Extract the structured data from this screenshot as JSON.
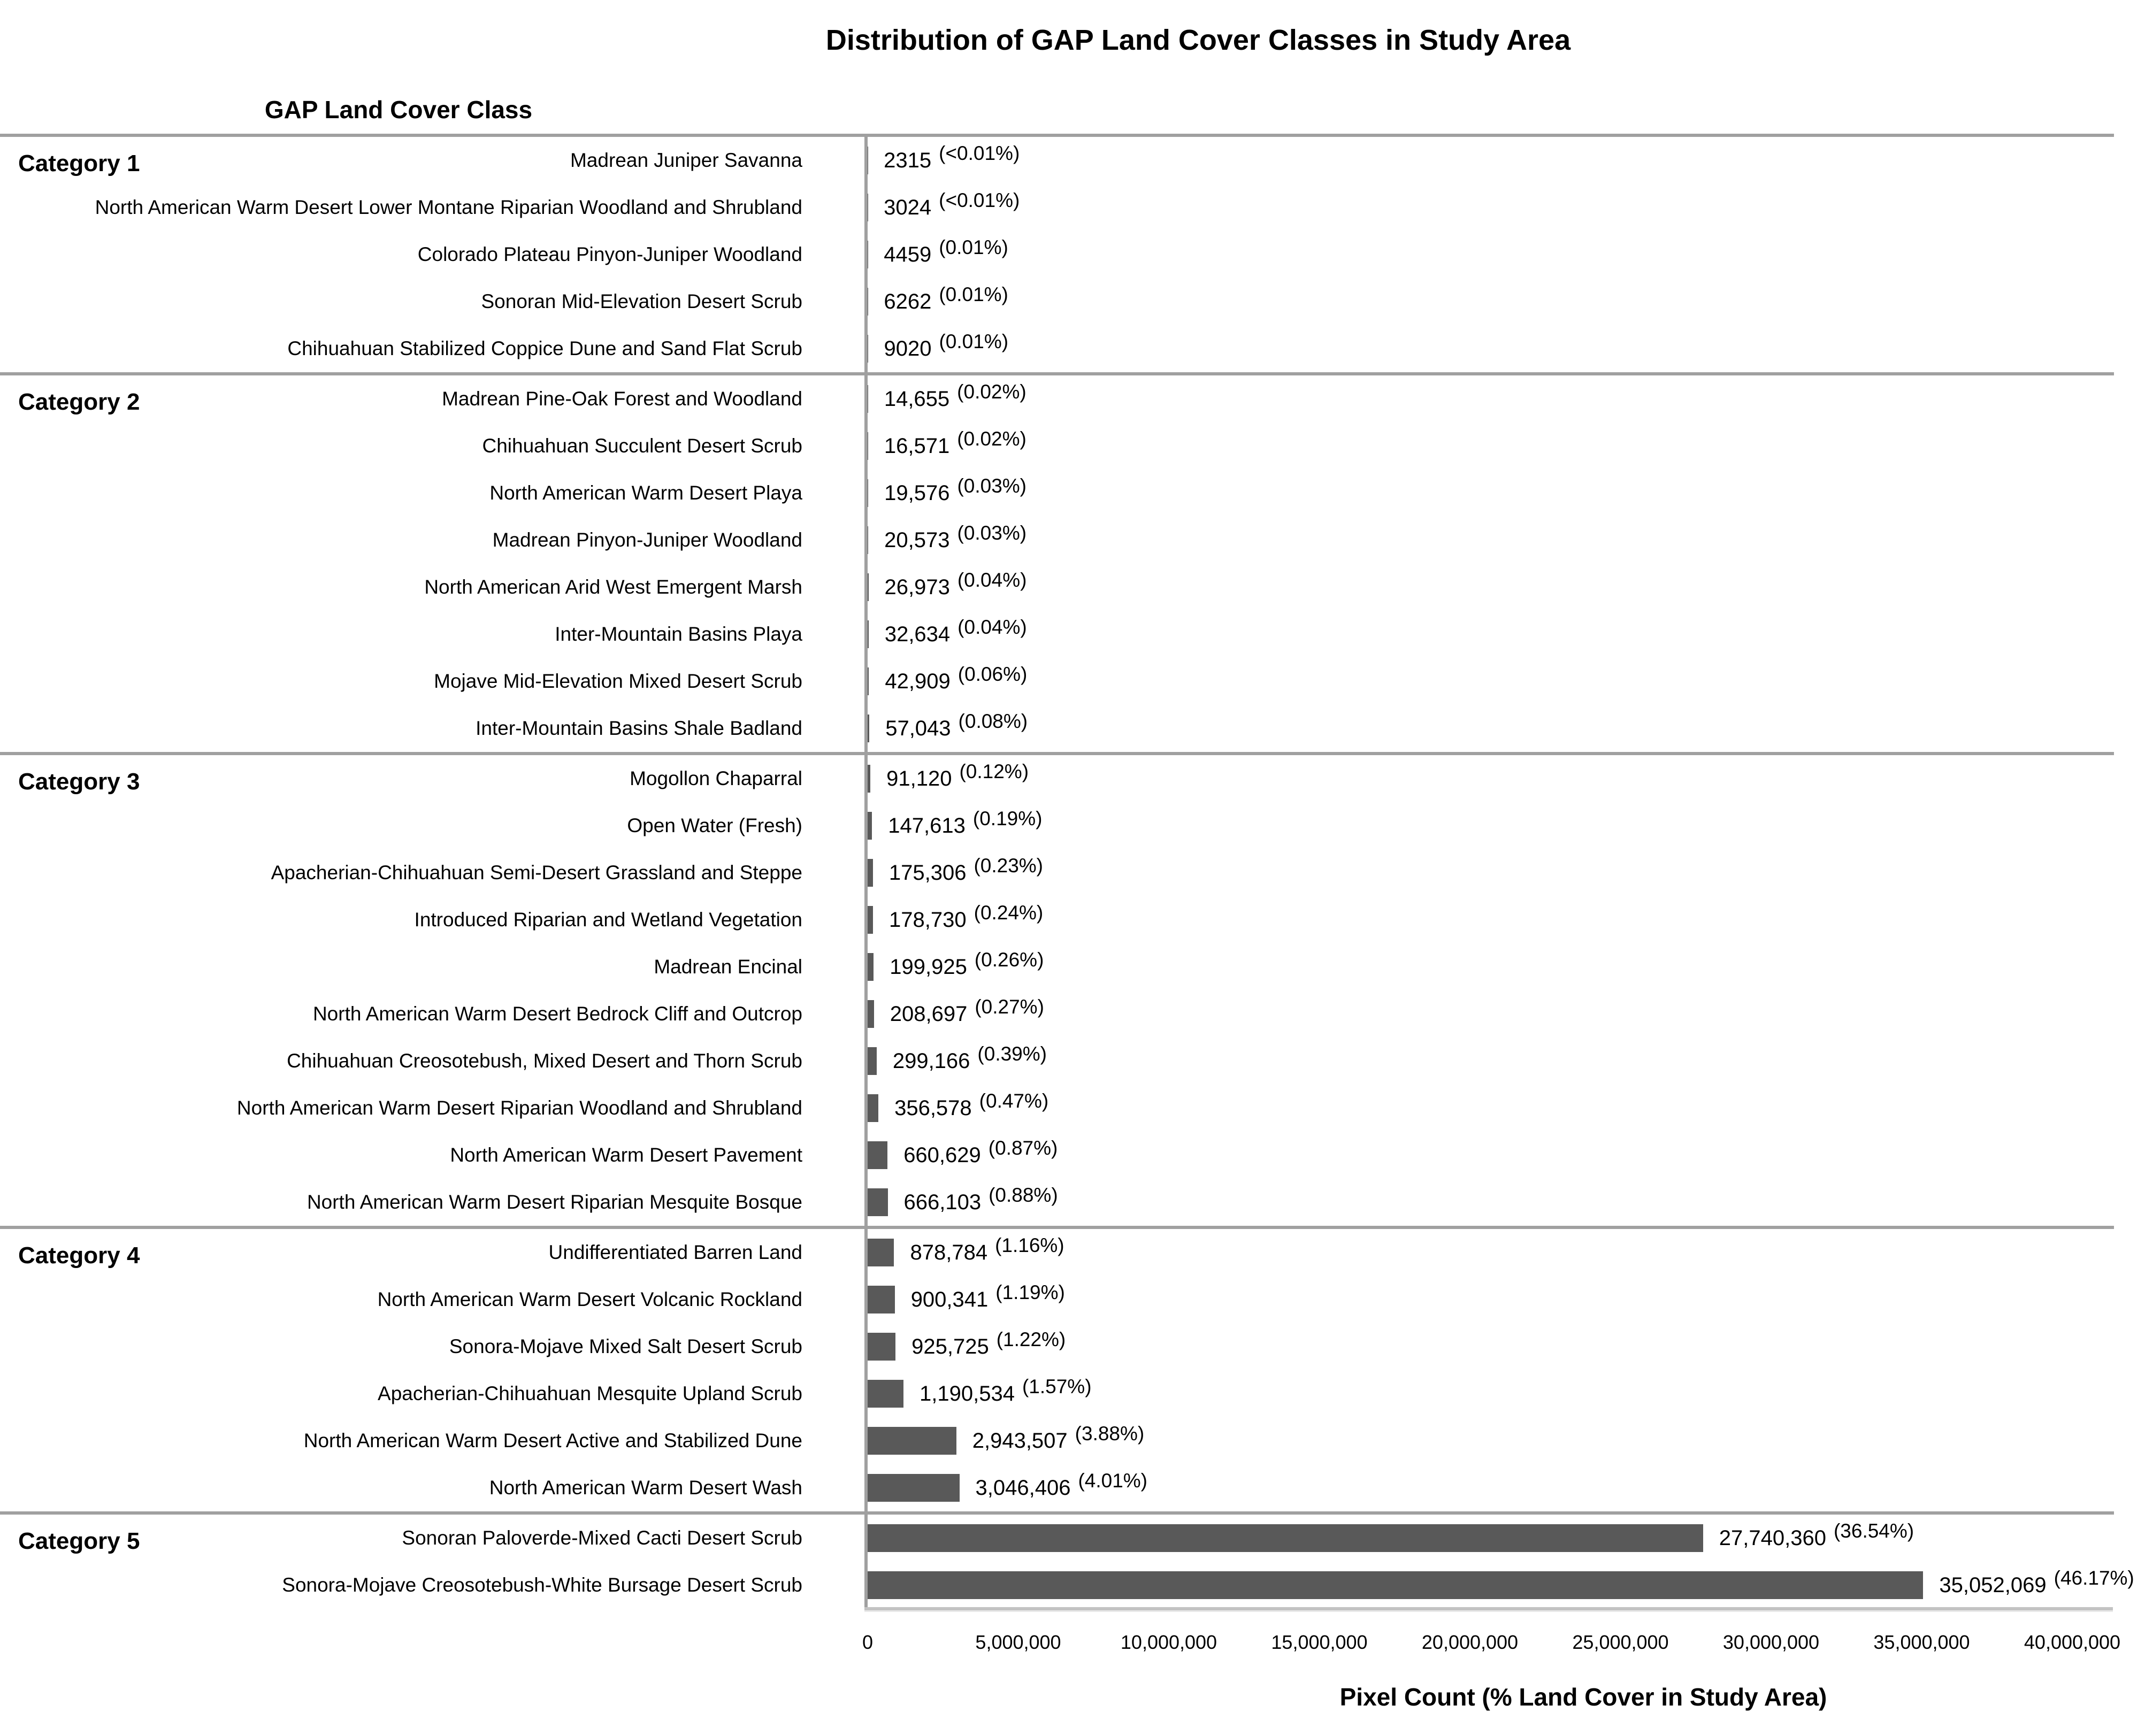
{
  "header": {
    "column_header": "GAP Land Cover Class"
  },
  "colors": {
    "bar": "#595959",
    "separator_line": "#a0a0a0",
    "axis_line": "#c3c3c3",
    "text": "#000000"
  },
  "chart_data": {
    "type": "bar",
    "orientation": "horizontal",
    "title": "Distribution of GAP Land Cover Classes in Study Area",
    "xlabel": "Pixel Count (% Land Cover in Study Area)",
    "xlim": [
      0,
      40000000
    ],
    "x_ticks": [
      "0",
      "5,000,000",
      "10,000,000",
      "15,000,000",
      "20,000,000",
      "25,000,000",
      "30,000,000",
      "35,000,000",
      "40,000,000"
    ],
    "grid": false,
    "legend": "none",
    "groups": [
      {
        "label": "Category 1",
        "items": [
          {
            "name": "Madrean Juniper Savanna",
            "value": 2315,
            "value_label": "2315",
            "pct_label": "(<0.01%)"
          },
          {
            "name": "North American Warm Desert Lower Montane Riparian Woodland and Shrubland",
            "value": 3024,
            "value_label": "3024",
            "pct_label": "(<0.01%)"
          },
          {
            "name": "Colorado Plateau Pinyon-Juniper Woodland",
            "value": 4459,
            "value_label": "4459",
            "pct_label": "(0.01%)"
          },
          {
            "name": "Sonoran Mid-Elevation Desert Scrub",
            "value": 6262,
            "value_label": "6262",
            "pct_label": "(0.01%)"
          },
          {
            "name": "Chihuahuan Stabilized Coppice Dune and Sand Flat Scrub",
            "value": 9020,
            "value_label": "9020",
            "pct_label": "(0.01%)"
          }
        ]
      },
      {
        "label": "Category 2",
        "items": [
          {
            "name": "Madrean Pine-Oak Forest and Woodland",
            "value": 14655,
            "value_label": "14,655",
            "pct_label": "(0.02%)"
          },
          {
            "name": "Chihuahuan Succulent Desert Scrub",
            "value": 16571,
            "value_label": "16,571",
            "pct_label": "(0.02%)"
          },
          {
            "name": "North American Warm Desert Playa",
            "value": 19576,
            "value_label": "19,576",
            "pct_label": "(0.03%)"
          },
          {
            "name": "Madrean Pinyon-Juniper Woodland",
            "value": 20573,
            "value_label": "20,573",
            "pct_label": "(0.03%)"
          },
          {
            "name": "North American Arid West Emergent Marsh",
            "value": 26973,
            "value_label": "26,973",
            "pct_label": "(0.04%)"
          },
          {
            "name": "Inter-Mountain Basins Playa",
            "value": 32634,
            "value_label": "32,634",
            "pct_label": "(0.04%)"
          },
          {
            "name": "Mojave Mid-Elevation Mixed Desert Scrub",
            "value": 42909,
            "value_label": "42,909",
            "pct_label": "(0.06%)"
          },
          {
            "name": "Inter-Mountain Basins Shale Badland",
            "value": 57043,
            "value_label": "57,043",
            "pct_label": "(0.08%)"
          }
        ]
      },
      {
        "label": "Category 3",
        "items": [
          {
            "name": "Mogollon Chaparral",
            "value": 91120,
            "value_label": "91,120",
            "pct_label": "(0.12%)"
          },
          {
            "name": "Open Water (Fresh)",
            "value": 147613,
            "value_label": "147,613",
            "pct_label": "(0.19%)"
          },
          {
            "name": "Apacherian-Chihuahuan Semi-Desert Grassland and Steppe",
            "value": 175306,
            "value_label": "175,306",
            "pct_label": "(0.23%)"
          },
          {
            "name": "Introduced Riparian and Wetland Vegetation",
            "value": 178730,
            "value_label": "178,730",
            "pct_label": "(0.24%)"
          },
          {
            "name": "Madrean Encinal",
            "value": 199925,
            "value_label": "199,925",
            "pct_label": "(0.26%)"
          },
          {
            "name": "North American Warm Desert Bedrock Cliff and Outcrop",
            "value": 208697,
            "value_label": "208,697",
            "pct_label": "(0.27%)"
          },
          {
            "name": "Chihuahuan Creosotebush, Mixed Desert and Thorn Scrub",
            "value": 299166,
            "value_label": "299,166",
            "pct_label": "(0.39%)"
          },
          {
            "name": "North American Warm Desert Riparian Woodland and Shrubland",
            "value": 356578,
            "value_label": "356,578",
            "pct_label": "(0.47%)"
          },
          {
            "name": "North American Warm Desert Pavement",
            "value": 660629,
            "value_label": "660,629",
            "pct_label": "(0.87%)"
          },
          {
            "name": "North American Warm Desert Riparian Mesquite Bosque",
            "value": 666103,
            "value_label": "666,103",
            "pct_label": "(0.88%)"
          }
        ]
      },
      {
        "label": "Category 4",
        "items": [
          {
            "name": "Undifferentiated Barren Land",
            "value": 878784,
            "value_label": "878,784",
            "pct_label": "(1.16%)"
          },
          {
            "name": "North American Warm Desert Volcanic Rockland",
            "value": 900341,
            "value_label": "900,341",
            "pct_label": "(1.19%)"
          },
          {
            "name": "Sonora-Mojave Mixed Salt Desert Scrub",
            "value": 925725,
            "value_label": "925,725",
            "pct_label": "(1.22%)"
          },
          {
            "name": "Apacherian-Chihuahuan Mesquite Upland Scrub",
            "value": 1190534,
            "value_label": "1,190,534",
            "pct_label": "(1.57%)"
          },
          {
            "name": "North American Warm Desert Active and Stabilized Dune",
            "value": 2943507,
            "value_label": "2,943,507",
            "pct_label": "(3.88%)"
          },
          {
            "name": "North American Warm Desert Wash",
            "value": 3046406,
            "value_label": "3,046,406",
            "pct_label": "(4.01%)"
          }
        ]
      },
      {
        "label": "Category 5",
        "items": [
          {
            "name": "Sonoran Paloverde-Mixed Cacti Desert Scrub",
            "value": 27740360,
            "value_label": "27,740,360",
            "pct_label": "(36.54%)"
          },
          {
            "name": "Sonora-Mojave Creosotebush-White Bursage Desert Scrub",
            "value": 35052069,
            "value_label": "35,052,069",
            "pct_label": "(46.17%)"
          }
        ]
      }
    ]
  }
}
